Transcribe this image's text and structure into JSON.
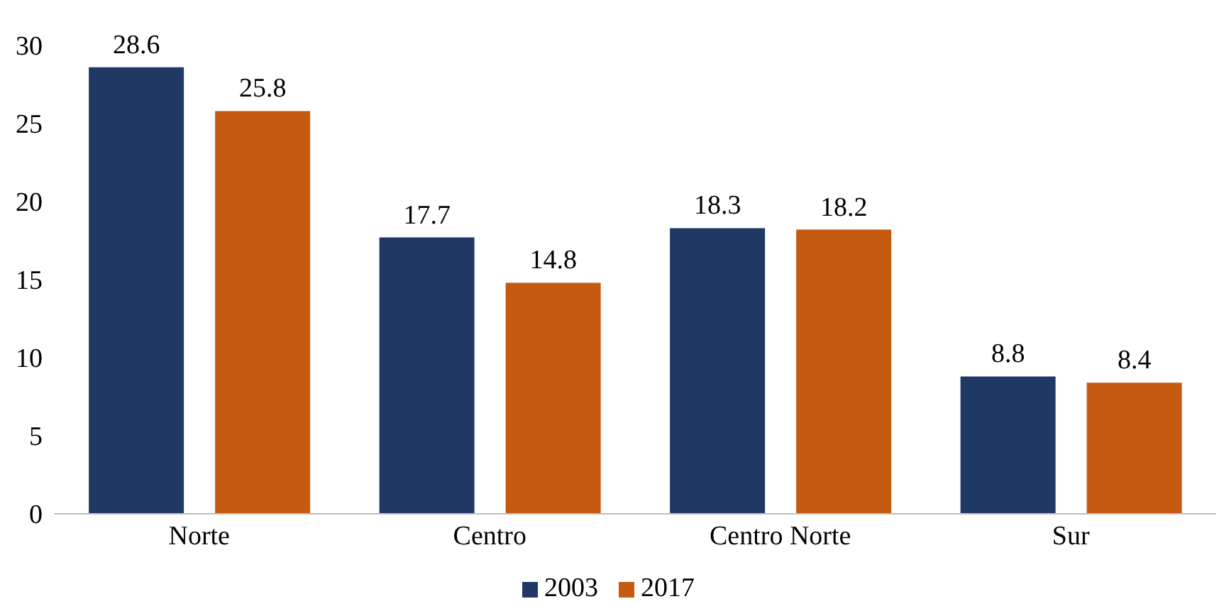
{
  "chart_data": {
    "type": "bar",
    "categories": [
      "Norte",
      "Centro",
      "Centro Norte",
      "Sur"
    ],
    "series": [
      {
        "name": "2003",
        "color": "#203864",
        "values": [
          28.6,
          17.7,
          18.3,
          8.8
        ]
      },
      {
        "name": "2017",
        "color": "#c55a11",
        "values": [
          25.8,
          14.8,
          18.2,
          8.4
        ]
      }
    ],
    "ylim": [
      0,
      30
    ],
    "yticks": [
      0,
      5,
      10,
      15,
      20,
      25,
      30
    ],
    "data_labels": true,
    "legend": "bottom",
    "grid": false
  }
}
